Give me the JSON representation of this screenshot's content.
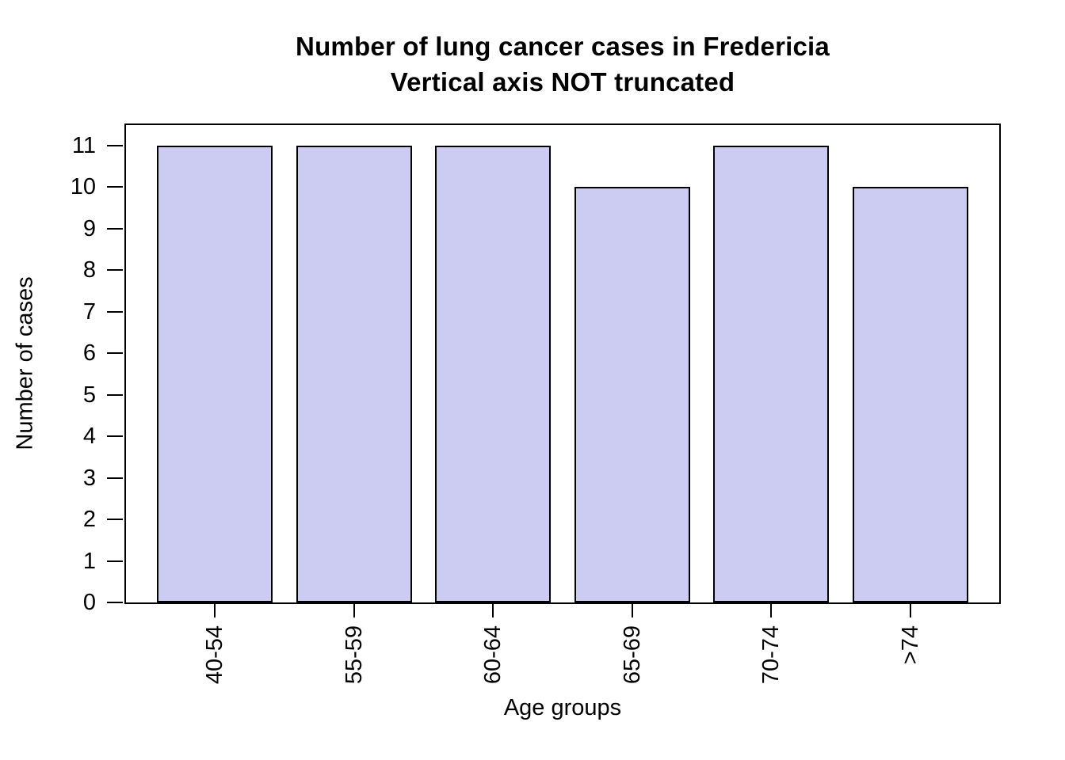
{
  "title": {
    "line1": "Number of lung cancer cases in Fredericia",
    "line2": "Vertical axis NOT truncated"
  },
  "chart_data": {
    "type": "bar",
    "title": "Number of lung cancer cases in Fredericia\nVertical axis NOT truncated",
    "categories": [
      "40-54",
      "55-59",
      "60-64",
      "65-69",
      "70-74",
      ">74"
    ],
    "values": [
      11,
      11,
      11,
      10,
      11,
      10
    ],
    "xlabel": "Age groups",
    "ylabel": "Number of cases",
    "ylim": [
      0,
      11
    ],
    "yticks": [
      0,
      1,
      2,
      3,
      4,
      5,
      6,
      7,
      8,
      9,
      10,
      11
    ],
    "grid": false,
    "legend_position": "none",
    "bar_fill_color": "#CCCCF2",
    "bar_border_color": "#000000",
    "axis_color": "#000000",
    "background_color": "#FFFFFF"
  }
}
